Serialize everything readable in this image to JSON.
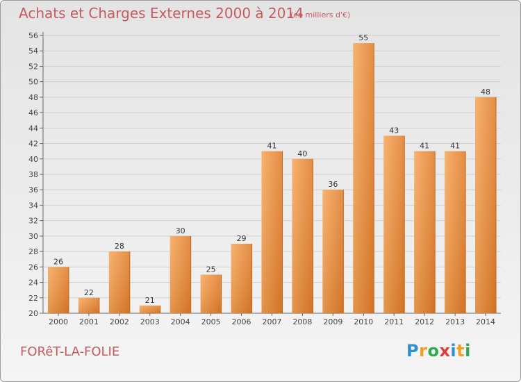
{
  "header": {
    "title": "Achats et Charges Externes 2000 à 2014",
    "subtitle": "(en milliers d'€)"
  },
  "footer": {
    "town": "FORêT-LA-FOLIE",
    "logo_letters": [
      "P",
      "r",
      "o",
      "x",
      "i",
      "t",
      "i"
    ]
  },
  "colors": {
    "title": "#c55a5f",
    "bar_light": "#f6a75c",
    "bar_dark": "#dd7a27",
    "logo": [
      "#2f8fd0",
      "#f0a020",
      "#2fa84f",
      "#e03c3c",
      "#2f8fd0",
      "#f0a020",
      "#2fa84f"
    ]
  },
  "chart_data": {
    "type": "bar",
    "title": "Achats et Charges Externes 2000 à 2014",
    "subtitle": "(en milliers d'€)",
    "categories": [
      "2000",
      "2001",
      "2002",
      "2003",
      "2004",
      "2005",
      "2006",
      "2007",
      "2008",
      "2009",
      "2010",
      "2011",
      "2012",
      "2013",
      "2014"
    ],
    "values": [
      26,
      22,
      28,
      21,
      30,
      25,
      29,
      41,
      40,
      36,
      55,
      43,
      41,
      41,
      48
    ],
    "ylim": [
      20,
      56
    ],
    "yticks": [
      20,
      22,
      24,
      26,
      28,
      30,
      32,
      34,
      36,
      38,
      40,
      42,
      44,
      46,
      48,
      50,
      52,
      54,
      56
    ],
    "grid": true,
    "data_labels": true
  }
}
